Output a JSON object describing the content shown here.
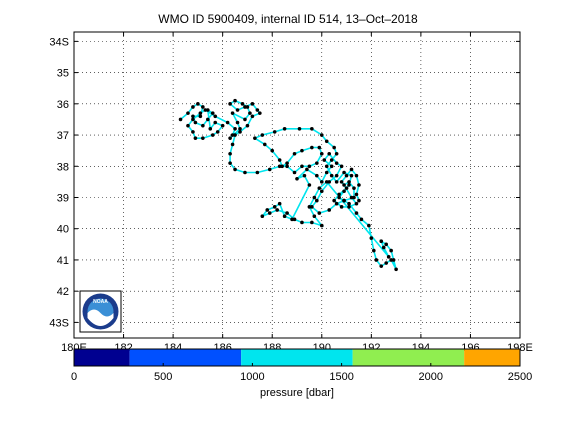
{
  "chart_data": {
    "type": "scatter",
    "title": "WMO ID 5900409, internal ID 514, 13–Oct–2018",
    "xlim": [
      180,
      198
    ],
    "ylim": [
      -43.5,
      -33.7
    ],
    "grid": true,
    "x_tick_labels": [
      "180E",
      "182",
      "184",
      "186",
      "188",
      "190",
      "192",
      "194",
      "196",
      "198E"
    ],
    "x_tick_values": [
      180,
      182,
      184,
      186,
      188,
      190,
      192,
      194,
      196,
      198
    ],
    "y_tick_labels": [
      "34S",
      "35",
      "36",
      "37",
      "38",
      "39",
      "40",
      "41",
      "42",
      "43S"
    ],
    "y_tick_values": [
      -34,
      -35,
      -36,
      -37,
      -38,
      -39,
      -40,
      -41,
      -42,
      -43
    ],
    "track_color": "#00e5ee",
    "point_color": "#000000",
    "track": [
      [
        184.3,
        -36.5
      ],
      [
        184.6,
        -36.3
      ],
      [
        184.8,
        -36.1
      ],
      [
        185.0,
        -36.0
      ],
      [
        185.2,
        -36.1
      ],
      [
        185.1,
        -36.4
      ],
      [
        184.8,
        -36.4
      ],
      [
        184.9,
        -36.6
      ],
      [
        185.2,
        -36.7
      ],
      [
        185.4,
        -36.5
      ],
      [
        185.6,
        -36.3
      ],
      [
        185.4,
        -36.2
      ],
      [
        185.5,
        -36.8
      ],
      [
        185.7,
        -36.6
      ],
      [
        186.0,
        -36.7
      ],
      [
        185.8,
        -36.9
      ],
      [
        185.6,
        -37.0
      ],
      [
        185.2,
        -37.1
      ],
      [
        184.9,
        -37.1
      ],
      [
        184.8,
        -36.9
      ],
      [
        184.6,
        -36.7
      ],
      [
        184.8,
        -36.5
      ],
      [
        185.1,
        -36.3
      ],
      [
        185.3,
        -36.2
      ],
      [
        185.7,
        -36.4
      ],
      [
        186.2,
        -36.6
      ],
      [
        186.5,
        -36.8
      ],
      [
        186.4,
        -37.0
      ],
      [
        186.3,
        -37.1
      ],
      [
        186.7,
        -36.8
      ],
      [
        186.6,
        -36.6
      ],
      [
        186.4,
        -36.3
      ],
      [
        186.9,
        -36.5
      ],
      [
        187.1,
        -36.3
      ],
      [
        187.0,
        -36.1
      ],
      [
        186.8,
        -36.0
      ],
      [
        186.5,
        -35.9
      ],
      [
        186.3,
        -36.0
      ],
      [
        186.6,
        -36.2
      ],
      [
        186.9,
        -36.1
      ],
      [
        187.2,
        -36.0
      ],
      [
        187.4,
        -36.2
      ],
      [
        187.5,
        -36.3
      ],
      [
        187.2,
        -36.4
      ],
      [
        187.0,
        -36.7
      ],
      [
        186.7,
        -36.9
      ],
      [
        186.5,
        -37.0
      ],
      [
        186.4,
        -37.3
      ],
      [
        186.3,
        -37.6
      ],
      [
        186.3,
        -37.9
      ],
      [
        186.5,
        -38.1
      ],
      [
        186.9,
        -38.2
      ],
      [
        187.4,
        -38.2
      ],
      [
        187.9,
        -38.1
      ],
      [
        188.3,
        -38.0
      ],
      [
        188.6,
        -38.0
      ],
      [
        188.9,
        -38.2
      ],
      [
        189.2,
        -38.0
      ],
      [
        189.5,
        -38.0
      ],
      [
        189.8,
        -37.9
      ],
      [
        190.0,
        -37.6
      ],
      [
        189.9,
        -37.4
      ],
      [
        189.6,
        -37.4
      ],
      [
        189.2,
        -37.5
      ],
      [
        188.9,
        -37.6
      ],
      [
        188.6,
        -37.9
      ],
      [
        188.4,
        -38.0
      ],
      [
        188.3,
        -37.8
      ],
      [
        188.0,
        -37.5
      ],
      [
        187.7,
        -37.3
      ],
      [
        187.3,
        -37.1
      ],
      [
        187.6,
        -37.0
      ],
      [
        188.1,
        -36.9
      ],
      [
        188.5,
        -36.8
      ],
      [
        189.1,
        -36.8
      ],
      [
        189.6,
        -36.8
      ],
      [
        190.0,
        -37.0
      ],
      [
        190.2,
        -37.2
      ],
      [
        190.5,
        -37.4
      ],
      [
        190.6,
        -37.6
      ],
      [
        190.4,
        -37.8
      ],
      [
        190.2,
        -38.0
      ],
      [
        190.4,
        -38.3
      ],
      [
        190.6,
        -38.5
      ],
      [
        190.9,
        -38.2
      ],
      [
        191.2,
        -38.3
      ],
      [
        191.1,
        -38.6
      ],
      [
        190.9,
        -38.8
      ],
      [
        190.7,
        -39.0
      ],
      [
        190.9,
        -39.1
      ],
      [
        191.1,
        -39.2
      ],
      [
        191.4,
        -39.5
      ],
      [
        191.6,
        -39.7
      ],
      [
        191.9,
        -39.9
      ],
      [
        192.0,
        -40.3
      ],
      [
        192.1,
        -40.7
      ],
      [
        192.2,
        -41.0
      ],
      [
        192.4,
        -41.2
      ],
      [
        192.6,
        -41.1
      ],
      [
        192.8,
        -41.0
      ],
      [
        193.0,
        -41.3
      ],
      [
        192.9,
        -41.0
      ],
      [
        192.8,
        -40.7
      ],
      [
        192.6,
        -40.5
      ],
      [
        192.4,
        -40.4
      ],
      [
        192.5,
        -40.6
      ],
      [
        192.7,
        -40.9
      ],
      [
        190.2,
        -38.5
      ],
      [
        189.9,
        -38.7
      ],
      [
        189.7,
        -39.0
      ],
      [
        189.5,
        -39.3
      ],
      [
        189.7,
        -39.6
      ],
      [
        190.0,
        -39.9
      ],
      [
        189.6,
        -39.8
      ],
      [
        189.2,
        -39.8
      ],
      [
        188.9,
        -39.7
      ],
      [
        188.6,
        -39.5
      ],
      [
        188.2,
        -39.4
      ],
      [
        187.9,
        -39.5
      ],
      [
        187.6,
        -39.6
      ],
      [
        187.8,
        -39.4
      ],
      [
        188.1,
        -39.3
      ],
      [
        188.3,
        -39.2
      ],
      [
        188.5,
        -39.6
      ],
      [
        188.8,
        -39.7
      ],
      [
        189.5,
        -38.6
      ],
      [
        189.3,
        -38.3
      ],
      [
        189.0,
        -38.4
      ],
      [
        189.4,
        -38.1
      ],
      [
        189.8,
        -38.3
      ],
      [
        190.0,
        -38.5
      ],
      [
        190.2,
        -38.2
      ],
      [
        190.4,
        -38.0
      ],
      [
        190.1,
        -37.8
      ],
      [
        190.3,
        -37.6
      ],
      [
        190.6,
        -37.9
      ],
      [
        190.8,
        -38.0
      ],
      [
        190.6,
        -38.3
      ],
      [
        190.3,
        -38.5
      ],
      [
        190.0,
        -38.8
      ],
      [
        189.8,
        -39.1
      ],
      [
        189.6,
        -39.3
      ],
      [
        189.9,
        -39.5
      ],
      [
        190.3,
        -39.4
      ],
      [
        190.6,
        -39.2
      ],
      [
        190.9,
        -39.1
      ],
      [
        191.3,
        -39.0
      ],
      [
        191.3,
        -38.7
      ],
      [
        191.1,
        -38.5
      ],
      [
        190.9,
        -38.6
      ],
      [
        191.2,
        -39.0
      ],
      [
        191.4,
        -39.2
      ],
      [
        191.1,
        -39.3
      ],
      [
        190.8,
        -39.3
      ],
      [
        190.5,
        -39.1
      ],
      [
        190.7,
        -38.9
      ],
      [
        191.0,
        -38.7
      ],
      [
        190.8,
        -38.5
      ],
      [
        191.0,
        -38.3
      ],
      [
        191.2,
        -38.1
      ],
      [
        191.4,
        -38.3
      ],
      [
        191.5,
        -38.6
      ],
      [
        191.4,
        -38.9
      ],
      [
        191.5,
        -39.1
      ]
    ],
    "colorbar": {
      "label": "pressure [dbar]",
      "tick_labels": [
        "0",
        "500",
        "1000",
        "1500",
        "2000",
        "2500"
      ],
      "tick_values": [
        0,
        500,
        1000,
        1500,
        2000,
        2500
      ],
      "range": [
        0,
        2500
      ],
      "segments": [
        {
          "from": 0,
          "to": 312,
          "color": "#000090"
        },
        {
          "from": 312,
          "to": 937,
          "color": "#0050ff"
        },
        {
          "from": 937,
          "to": 1562,
          "color": "#00e5ee"
        },
        {
          "from": 1562,
          "to": 2187,
          "color": "#90ee50"
        },
        {
          "from": 2187,
          "to": 2500,
          "color": "#ffa500"
        }
      ]
    }
  },
  "logo": {
    "text": "NOAA",
    "colors": {
      "ring": "#1b3c8c",
      "sky": "#3a8fd6",
      "wave": "#ffffff"
    }
  }
}
